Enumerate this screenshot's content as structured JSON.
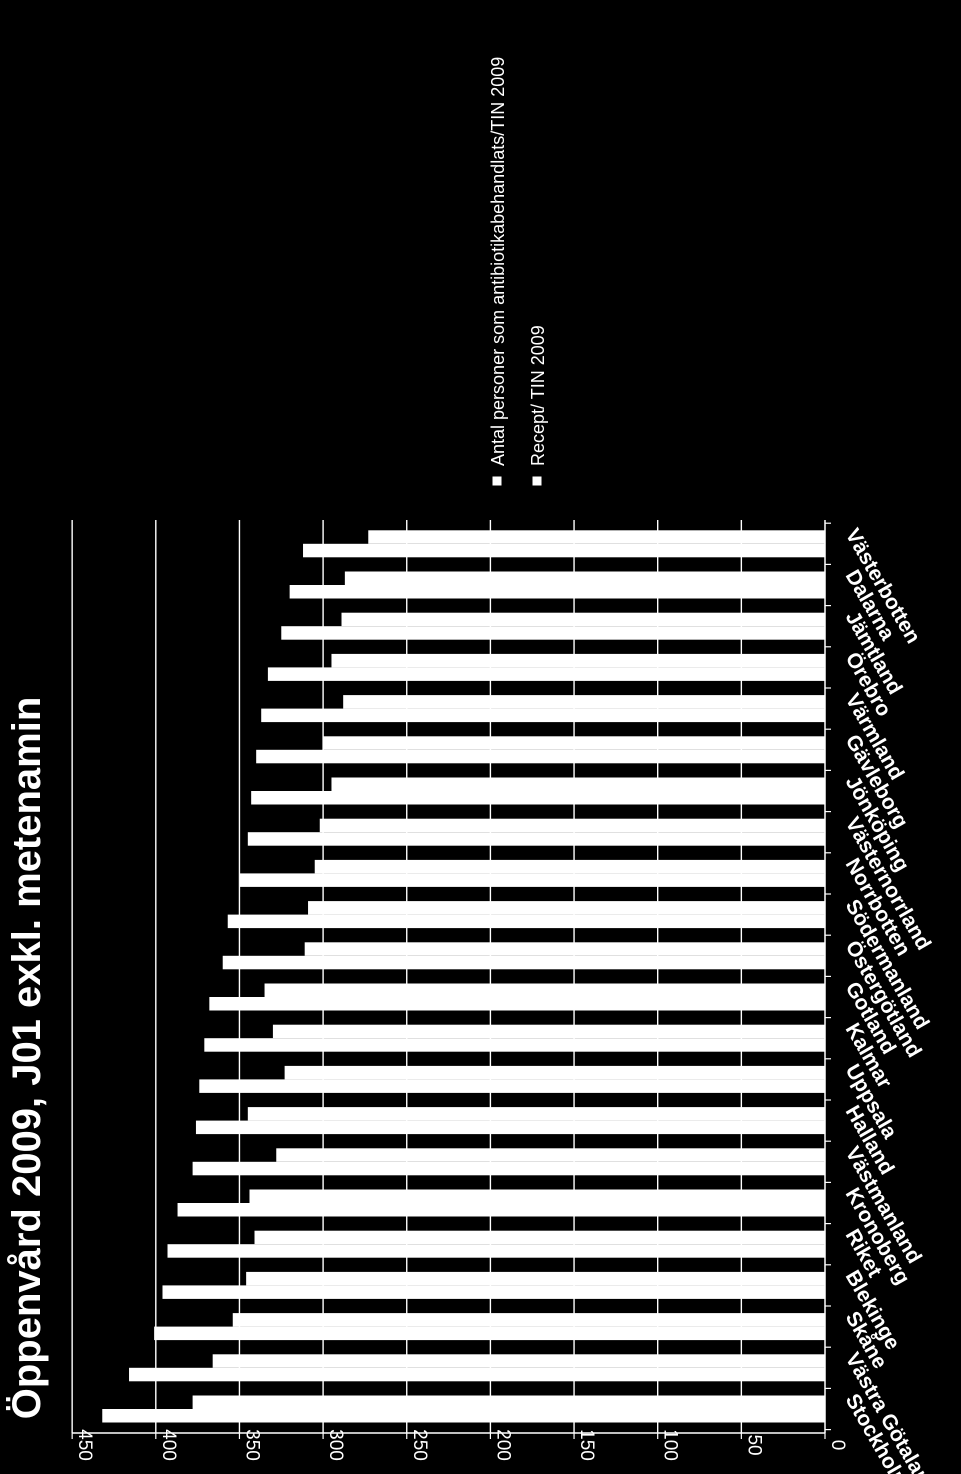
{
  "chart_data": {
    "type": "bar",
    "orientation": "horizontal",
    "title": "Öppenvård 2009, J01 exkl. metenamin",
    "xlabel": "",
    "ylabel": "",
    "ylim": [
      0,
      450
    ],
    "yticks": [
      0,
      50,
      100,
      150,
      200,
      250,
      300,
      350,
      400,
      450
    ],
    "grid": true,
    "legend_position": "top-right",
    "categories": [
      "Stockholm",
      "Västra Götaland",
      "Skåne",
      "Blekinge",
      "Riket",
      "Kronoberg",
      "Västmanland",
      "Halland",
      "Uppsala",
      "Kalmar",
      "Gotland",
      "Östergötland",
      "Södermanland",
      "Norrbotten",
      "Västernorrland",
      "Jönköping",
      "Gävleborg",
      "Värmland",
      "Örebro",
      "Jämtland",
      "Dalarna",
      "Västerbotten"
    ],
    "series": [
      {
        "name": "Antal personer som antibiotikabehandlats/TIN 2009",
        "color": "#ffffff",
        "values": [
          378,
          366,
          354,
          346,
          341,
          344,
          328,
          345,
          323,
          330,
          335,
          311,
          309,
          305,
          302,
          295,
          300,
          288,
          295,
          289,
          287,
          273
        ]
      },
      {
        "name": "Recept/ TIN 2009",
        "color": "#ffffff",
        "values": [
          432,
          416,
          401,
          396,
          393,
          387,
          378,
          376,
          374,
          371,
          368,
          360,
          357,
          350,
          345,
          343,
          340,
          337,
          333,
          325,
          320,
          312
        ]
      }
    ]
  }
}
